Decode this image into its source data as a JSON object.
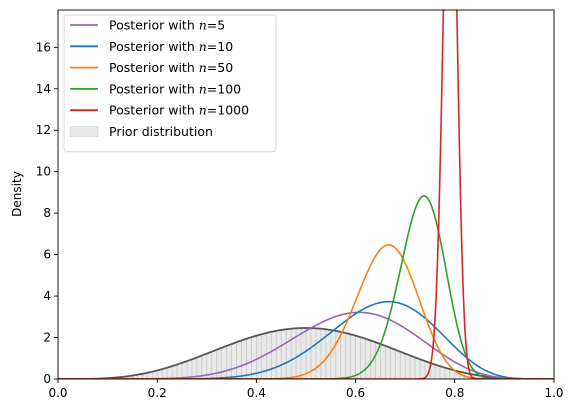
{
  "chart_data": {
    "type": "line",
    "title": "",
    "xlabel": "",
    "ylabel": "Density",
    "xlim": [
      0.0,
      1.0
    ],
    "ylim": [
      0,
      17.8
    ],
    "x_ticks": [
      "0.0",
      "0.2",
      "0.4",
      "0.6",
      "0.8",
      "1.0"
    ],
    "y_ticks": [
      "0",
      "2",
      "4",
      "6",
      "8",
      "10",
      "12",
      "14",
      "16"
    ],
    "legend_position": "top-left",
    "series": [
      {
        "name": "Posterior with n = 5",
        "name_prefix": "Posterior with ",
        "name_math": "n = 5",
        "color": "#9467bd",
        "alpha": 9.5,
        "beta": 6.5
      },
      {
        "name": "Posterior with n = 10",
        "name_prefix": "Posterior with ",
        "name_math": "n = 10",
        "color": "#1f77b4",
        "alpha": 13,
        "beta": 7
      },
      {
        "name": "Posterior with n = 50",
        "name_prefix": "Posterior with ",
        "name_math": "n = 50",
        "color": "#ff7f0e",
        "alpha": 39,
        "beta": 20
      },
      {
        "name": "Posterior with n = 100",
        "name_prefix": "Posterior with ",
        "name_math": "n = 100",
        "color": "#2ca02c",
        "alpha": 70,
        "beta": 25.5
      },
      {
        "name": "Posterior with n = 1000",
        "name_prefix": "Posterior with ",
        "name_math": "n = 1000",
        "color": "#d62728",
        "alpha": 685,
        "beta": 182
      }
    ],
    "prior": {
      "name": "Prior distribution",
      "line_color": "#555555",
      "fill_color": "#e9e9e9",
      "hatch_color": "#c8c8c8",
      "alpha": 5,
      "beta": 5
    }
  }
}
